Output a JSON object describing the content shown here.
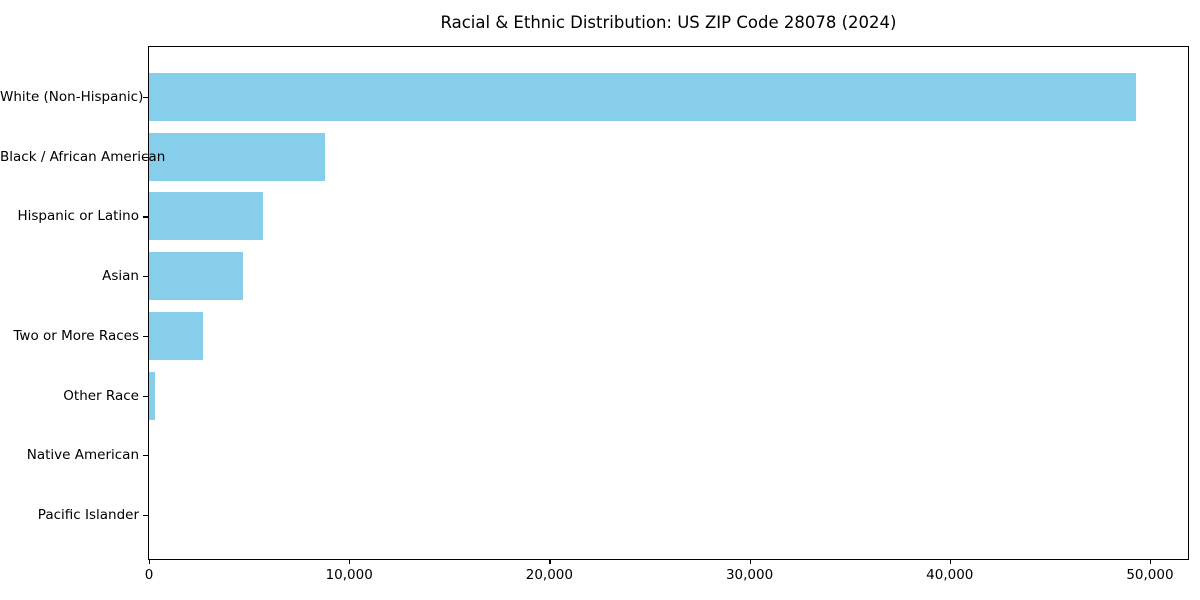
{
  "chart_data": {
    "type": "bar",
    "orientation": "horizontal",
    "title": "Racial & Ethnic Distribution: US ZIP Code 28078 (2024)",
    "categories": [
      "White (Non-Hispanic)",
      "Black / African American",
      "Hispanic or Latino",
      "Asian",
      "Two or More Races",
      "Other Race",
      "Native American",
      "Pacific Islander"
    ],
    "values": [
      49300,
      8800,
      5700,
      4700,
      2700,
      300,
      0,
      0
    ],
    "xlabel": "",
    "ylabel": "",
    "xlim": [
      0,
      51900
    ],
    "x_ticks": [
      {
        "value": 0,
        "label": "0"
      },
      {
        "value": 10000,
        "label": "10,000"
      },
      {
        "value": 20000,
        "label": "20,000"
      },
      {
        "value": 30000,
        "label": "30,000"
      },
      {
        "value": 40000,
        "label": "40,000"
      },
      {
        "value": 50000,
        "label": "50,000"
      }
    ],
    "bar_color": "#87CEEB",
    "grid": false,
    "legend": null
  }
}
